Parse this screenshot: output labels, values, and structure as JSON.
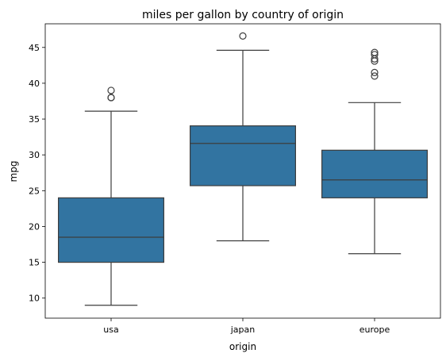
{
  "chart_data": {
    "type": "box",
    "title": "miles per gallon by country of origin",
    "xlabel": "origin",
    "ylabel": "mpg",
    "ylim": [
      7.2,
      48.3
    ],
    "yticks": [
      10,
      15,
      20,
      25,
      30,
      35,
      40,
      45
    ],
    "categories": [
      "usa",
      "japan",
      "europe"
    ],
    "color": "#3274a1",
    "edge_color": "#3d3d3d",
    "boxes": [
      {
        "category": "usa",
        "whisker_low": 9.0,
        "q1": 15.0,
        "median": 18.5,
        "q3": 24.0,
        "whisker_high": 36.1,
        "outliers": [
          38.0,
          38.0,
          39.0
        ]
      },
      {
        "category": "japan",
        "whisker_low": 18.0,
        "q1": 25.7,
        "median": 31.6,
        "q3": 34.05,
        "whisker_high": 44.6,
        "outliers": [
          46.6
        ]
      },
      {
        "category": "europe",
        "whisker_low": 16.2,
        "q1": 24.0,
        "median": 26.5,
        "q3": 30.65,
        "whisker_high": 37.3,
        "outliers": [
          41.0,
          41.5,
          43.1,
          43.4,
          44.0,
          44.3
        ]
      }
    ]
  }
}
